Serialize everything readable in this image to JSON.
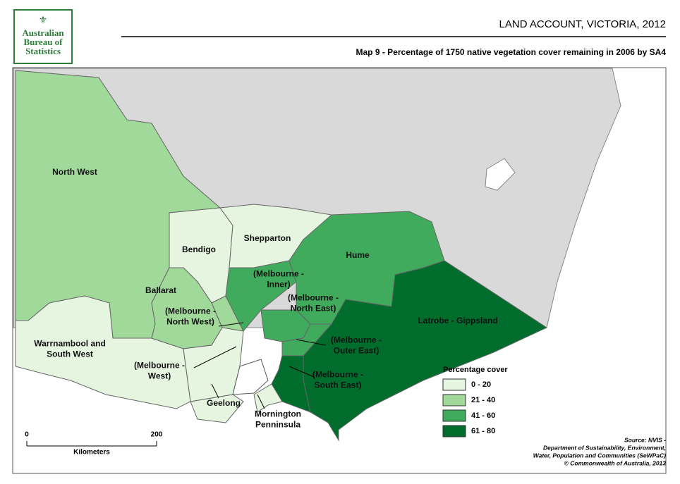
{
  "header": {
    "logo": [
      "Australian",
      "Bureau of",
      "Statistics"
    ],
    "title": "LAND ACCOUNT, VICTORIA, 2012",
    "subtitle": "Map 9 - Percentage of 1750 native vegetation cover remaining in 2006 by SA4"
  },
  "legend": {
    "title": "Percentage cover",
    "classes": [
      {
        "label": "0 - 20",
        "color": "#e5f5e0"
      },
      {
        "label": "21 - 40",
        "color": "#a1d99b"
      },
      {
        "label": "41 - 60",
        "color": "#41ab5d"
      },
      {
        "label": "61 - 80",
        "color": "#006d2c"
      }
    ]
  },
  "regions": [
    {
      "label": [
        "North West"
      ],
      "color": "#a1d99b"
    },
    {
      "label": [
        "Warrnambool and",
        "South West"
      ],
      "color": "#e5f5e0"
    },
    {
      "label": [
        "Bendigo"
      ],
      "color": "#e5f5e0"
    },
    {
      "label": [
        "Shepparton"
      ],
      "color": "#e5f5e0"
    },
    {
      "label": [
        "Ballarat"
      ],
      "color": "#a1d99b"
    },
    {
      "label": [
        "(Melbourne -",
        "North West)"
      ],
      "color": "#a1d99b"
    },
    {
      "label": [
        "(Melbourne -",
        "West)"
      ],
      "color": "#e5f5e0"
    },
    {
      "label": [
        "Geelong"
      ],
      "color": "#e5f5e0"
    },
    {
      "label": [
        "(Melbourne -",
        "Inner)"
      ],
      "color": "#41ab5d"
    },
    {
      "label": [
        "Hume"
      ],
      "color": "#41ab5d"
    },
    {
      "label": [
        "(Melbourne -",
        "North East)"
      ],
      "color": "#41ab5d"
    },
    {
      "label": [
        "(Melbourne -",
        "Outer East)"
      ],
      "color": "#41ab5d"
    },
    {
      "label": [
        "Latrobe - Gippsland"
      ],
      "color": "#006d2c"
    },
    {
      "label": [
        "(Melbourne -",
        "South East)"
      ],
      "color": "#006d2c"
    },
    {
      "label": [
        "Mornington",
        "Penninsula"
      ],
      "color": "#e5f5e0"
    }
  ],
  "scale": {
    "ticks": [
      0,
      200
    ],
    "range": [
      0,
      200
    ],
    "label": "Kilometers"
  },
  "source": [
    "Source: NVIS -",
    "Department of Sustainability, Environment,",
    "Water, Population and Communities (SeWPaC)",
    "© Commonwealth of Australia, 2013"
  ]
}
